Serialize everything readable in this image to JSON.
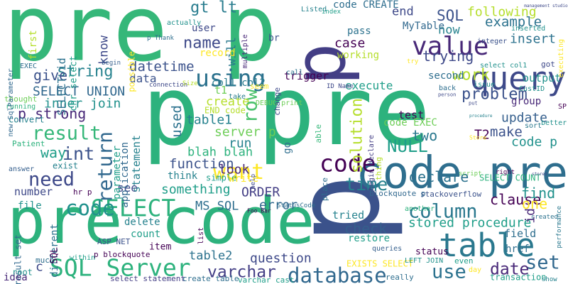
{
  "words": [
    {
      "text": "pre p",
      "color": "#35b779"
    },
    {
      "text": "p pre",
      "color": "#2db27d"
    },
    {
      "text": "p",
      "color": "#433e85"
    },
    {
      "text": "p",
      "color": "#3b528b"
    },
    {
      "text": "code pre",
      "color": "#2e6e8e"
    },
    {
      "text": "pre code",
      "color": "#2db27d"
    },
    {
      "text": "query",
      "color": "#3e4989"
    },
    {
      "text": "table",
      "color": "#2a788e"
    },
    {
      "text": "SQL Server",
      "color": "#2db27d"
    },
    {
      "text": "database",
      "color": "#31688e"
    },
    {
      "text": "value",
      "color": "#482878"
    },
    {
      "text": "using",
      "color": "#2c728e"
    },
    {
      "text": "string",
      "color": "#26828e"
    },
    {
      "text": "result",
      "color": "#35b779"
    },
    {
      "text": "SELECT",
      "color": "#2db27d"
    },
    {
      "text": "code",
      "color": "#21918c"
    },
    {
      "text": "want",
      "color": "#fde725"
    },
    {
      "text": "return",
      "color": "#31688e"
    },
    {
      "text": "need",
      "color": "#3e4989"
    },
    {
      "text": "int",
      "color": "#3b528b"
    },
    {
      "text": "column",
      "color": "#2a788e"
    },
    {
      "text": "row",
      "color": "#4ac16d"
    },
    {
      "text": "NULL",
      "color": "#1f9e89"
    },
    {
      "text": "code",
      "color": "#440154"
    },
    {
      "text": "time",
      "color": "#26828e"
    },
    {
      "text": "set",
      "color": "#31688e"
    },
    {
      "text": "use",
      "color": "#2c728e"
    },
    {
      "text": "date",
      "color": "#482878"
    },
    {
      "text": "varchar",
      "color": "#433e85"
    },
    {
      "text": "work",
      "color": "#b5de2b"
    },
    {
      "text": "gt lt",
      "color": "#287c8e"
    },
    {
      "text": "name",
      "color": "#3e4989"
    },
    {
      "text": "solution",
      "color": "#b5de2b"
    },
    {
      "text": "problem",
      "color": "#3b528b"
    },
    {
      "text": "stored procedure",
      "color": "#1f9e89"
    },
    {
      "text": "check",
      "color": "#355f8d"
    },
    {
      "text": "clause",
      "color": "#440154"
    },
    {
      "text": "declare",
      "color": "#2c728e"
    },
    {
      "text": "one",
      "color": "#fde725"
    },
    {
      "text": "find",
      "color": "#21918c"
    },
    {
      "text": "question",
      "color": "#3e4989"
    },
    {
      "text": "function",
      "color": "#3b528b"
    },
    {
      "text": "error",
      "color": "#31688e"
    },
    {
      "text": "SELECT UNION",
      "color": "#31688e"
    },
    {
      "text": "inner join",
      "color": "#21918c"
    },
    {
      "text": "p strong",
      "color": "#482878"
    },
    {
      "text": "datetime",
      "color": "#3b528b"
    },
    {
      "text": "server p",
      "color": "#6ece58"
    },
    {
      "text": "blah blah",
      "color": "#2db27d"
    },
    {
      "text": "table1",
      "color": "#26828e"
    },
    {
      "text": "table2",
      "color": "#2c728e"
    },
    {
      "text": "MS SQL",
      "color": "#2e6e8e"
    },
    {
      "text": "ORDER",
      "color": "#433e85"
    },
    {
      "text": "something",
      "color": "#1f9e89"
    },
    {
      "text": "SQL",
      "color": "#3b528b"
    },
    {
      "text": "example",
      "color": "#2c728e"
    },
    {
      "text": "following",
      "color": "#b5de2b"
    },
    {
      "text": "insert",
      "color": "#2c728e"
    },
    {
      "text": "trying",
      "color": "#3e4989"
    },
    {
      "text": "update",
      "color": "#355f8d"
    },
    {
      "text": "make",
      "color": "#3b528b"
    },
    {
      "text": "code p",
      "color": "#21918c"
    },
    {
      "text": "now",
      "color": "#26828e"
    },
    {
      "text": "end",
      "color": "#3e4989"
    },
    {
      "text": "case",
      "color": "#440154"
    },
    {
      "text": "give",
      "color": "#3b528b"
    },
    {
      "text": "way",
      "color": "#1f9e89"
    },
    {
      "text": "create",
      "color": "#b5de2b"
    },
    {
      "text": "know",
      "color": "#3e4989"
    },
    {
      "text": "will",
      "color": "#2a788e"
    },
    {
      "text": "data",
      "color": "#3b528b"
    },
    {
      "text": "run",
      "color": "#26828e"
    },
    {
      "text": "look",
      "color": "#482878"
    },
    {
      "text": "see",
      "color": "#3e4989"
    },
    {
      "text": "two",
      "color": "#2a788e"
    },
    {
      "text": "T2",
      "color": "#440154"
    },
    {
      "text": "id",
      "color": "#482878"
    },
    {
      "text": "used",
      "color": "#2c728e"
    },
    {
      "text": "EXISTS SELECT",
      "color": "#fde725"
    },
    {
      "text": "number",
      "color": "#3e4989"
    },
    {
      "text": "tried",
      "color": "#26828e"
    },
    {
      "text": "different",
      "color": "#2c728e"
    },
    {
      "text": "parameter",
      "color": "#1f9e89"
    },
    {
      "text": "statement",
      "color": "#26828e"
    },
    {
      "text": "application",
      "color": "#31688e"
    },
    {
      "text": "trigger",
      "color": "#440154"
    },
    {
      "text": "execute",
      "color": "#1f9e89"
    },
    {
      "text": "record",
      "color": "#fde725"
    },
    {
      "text": "code CREATE",
      "color": "#2e6e8e"
    },
    {
      "text": "MyTable",
      "color": "#31688e"
    },
    {
      "text": "pass",
      "color": "#2c728e"
    },
    {
      "text": "working",
      "color": "#b5de2b"
    },
    {
      "text": "group",
      "color": "#482878"
    },
    {
      "text": "test",
      "color": "#440154"
    },
    {
      "text": "output",
      "color": "#21918c"
    },
    {
      "text": "code EXEC",
      "color": "#6ece58"
    },
    {
      "text": "second",
      "color": "#2e6e8e"
    },
    {
      "text": "think",
      "color": "#26828e"
    },
    {
      "text": "END code",
      "color": "#b5de2b"
    },
    {
      "text": "simple",
      "color": "#1f9e89"
    },
    {
      "text": "write",
      "color": "#fde725"
    },
    {
      "text": "delete",
      "color": "#26828e"
    },
    {
      "text": "count",
      "color": "#1f9e89"
    },
    {
      "text": "field",
      "color": "#2e6e8e"
    },
    {
      "text": "href",
      "color": "#2e6e8e"
    },
    {
      "text": "restore",
      "color": "#1f9e89"
    },
    {
      "text": "status",
      "color": "#440154"
    },
    {
      "text": "SELECT COUNT",
      "color": "#2db27d"
    },
    {
      "text": "ASP NET",
      "color": "#3b528b"
    },
    {
      "text": "transaction",
      "color": "#1f9e89"
    },
    {
      "text": "LEFT JOIN",
      "color": "#21918c"
    },
    {
      "text": "result set",
      "color": "#31688e"
    },
    {
      "text": "p blockquote",
      "color": "#440154"
    },
    {
      "text": "select statement",
      "color": "#433e85"
    },
    {
      "text": "create table",
      "color": "#2e6e8e"
    },
    {
      "text": "varchar cast",
      "color": "#1f9e89"
    },
    {
      "text": "item",
      "color": "#440154"
    },
    {
      "text": "first",
      "color": "#b5de2b"
    },
    {
      "text": "SELECT id",
      "color": "#2c728e"
    },
    {
      "text": "chr select",
      "color": "#1f9e89"
    },
    {
      "text": "col1 col2",
      "color": "#287c8e"
    },
    {
      "text": "t1",
      "color": "#6ece58"
    },
    {
      "text": "convert",
      "color": "#26828e"
    },
    {
      "text": "exist",
      "color": "#26828e"
    },
    {
      "text": "answer",
      "color": "#355f8d"
    },
    {
      "text": "idea",
      "color": "#482878"
    },
    {
      "text": "root",
      "color": "#21918c"
    },
    {
      "text": "much",
      "color": "#2e6e8e"
    },
    {
      "text": "c",
      "color": "#3e4989"
    },
    {
      "text": "SQL",
      "color": "#440154"
    },
    {
      "text": "hr p",
      "color": "#440154"
    },
    {
      "text": "file",
      "color": "#21918c"
    },
    {
      "text": "go",
      "color": "#2e6e8e"
    },
    {
      "text": "Patient",
      "color": "#2db27d"
    },
    {
      "text": "running",
      "color": "#2db27d"
    },
    {
      "text": "thought",
      "color": "#6ece58"
    },
    {
      "text": "new SqlParameter",
      "color": "#31688e"
    },
    {
      "text": "EXEC",
      "color": "#2e6e8e"
    },
    {
      "text": "user",
      "color": "#3e4989"
    },
    {
      "text": "possible",
      "color": "#fde725"
    },
    {
      "text": "actually",
      "color": "#21918c"
    },
    {
      "text": "multiple",
      "color": "#482878"
    },
    {
      "text": "br",
      "color": "#3b528b"
    },
    {
      "text": "Listed",
      "color": "#26828e"
    },
    {
      "text": "index",
      "color": "#1f9e89"
    },
    {
      "text": "integer",
      "color": "#3b528b"
    },
    {
      "text": "select col1",
      "color": "#21918c"
    },
    {
      "text": "inserted",
      "color": "#21918c"
    },
    {
      "text": "ID Name",
      "color": "#3e4989"
    },
    {
      "text": "DEBUG print",
      "color": "#6ece58"
    },
    {
      "text": "stackoverflow",
      "color": "#3b528b"
    },
    {
      "text": "blockquote p",
      "color": "#31688e"
    },
    {
      "text": "script",
      "color": "#6ece58"
    },
    {
      "text": "right",
      "color": "#440154"
    },
    {
      "text": "another",
      "color": "#2db27d"
    },
    {
      "text": "queries",
      "color": "#355f8d"
    },
    {
      "text": "even",
      "color": "#1f9e89"
    },
    {
      "text": "day",
      "color": "#fde725"
    },
    {
      "text": "really",
      "color": "#2e6e8e"
    },
    {
      "text": "seem",
      "color": "#fde725"
    },
    {
      "text": "take",
      "color": "#287c8e"
    },
    {
      "text": "change",
      "color": "#3e4989"
    },
    {
      "text": "able",
      "color": "#35b779"
    },
    {
      "text": "place",
      "color": "#2e6e8e"
    },
    {
      "text": "call",
      "color": "#2c728e"
    },
    {
      "text": "sort",
      "color": "#2a788e"
    },
    {
      "text": "better",
      "color": "#21918c"
    },
    {
      "text": "CustID",
      "color": "#21918c"
    },
    {
      "text": "issue",
      "color": "#21918c"
    },
    {
      "text": "back",
      "color": "#2e6e8e"
    },
    {
      "text": "got",
      "color": "#3e4989"
    },
    {
      "text": "executing",
      "color": "#fde725"
    },
    {
      "text": "thing",
      "color": "#b5de2b"
    },
    {
      "text": "list",
      "color": "#440154"
    },
    {
      "text": "within",
      "color": "#1f9e89"
    },
    {
      "text": "StatusCode",
      "color": "#2e6e8e"
    },
    {
      "text": "help",
      "color": "#3e4989"
    },
    {
      "text": "created",
      "color": "#2c728e"
    },
    {
      "text": "show",
      "color": "#26828e"
    },
    {
      "text": "performance",
      "color": "#2a788e"
    },
    {
      "text": "begin declare",
      "color": "#433e85"
    },
    {
      "text": "connection",
      "color": "#3e4989"
    },
    {
      "text": "begin",
      "color": "#355f8d"
    },
    {
      "text": "p Thank",
      "color": "#2e6e8e"
    },
    {
      "text": "Size",
      "color": "#b5de2b"
    },
    {
      "text": "Foo Bar",
      "color": "#440154"
    },
    {
      "text": "SP",
      "color": "#440154"
    },
    {
      "text": "person",
      "color": "#3e4989"
    },
    {
      "text": "stored",
      "color": "#3e4989"
    },
    {
      "text": "procedure",
      "color": "#26828e"
    },
    {
      "text": "management studio",
      "color": "#3e4989"
    },
    {
      "text": "Store",
      "color": "#fde725"
    },
    {
      "text": "put",
      "color": "#3e4989"
    },
    {
      "text": "try",
      "color": "#fde725"
    }
  ]
}
